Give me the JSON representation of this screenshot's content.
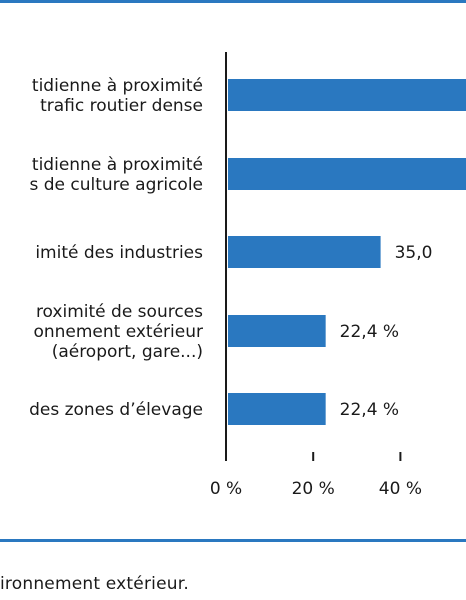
{
  "chart_data": {
    "type": "bar",
    "orientation": "horizontal",
    "categories": [
      [
        "tidienne à proximité",
        "trafic routier dense"
      ],
      [
        "tidienne à proximité",
        "s de culture agricole"
      ],
      [
        "imité des industries"
      ],
      [
        "roximité de sources",
        "onnement extérieur",
        "(aéroport, gare...)"
      ],
      [
        "des zones d’élevage"
      ]
    ],
    "values": [
      62,
      62,
      35.0,
      22.4,
      22.4
    ],
    "value_labels": [
      "",
      "",
      "35,0",
      "22,4 %",
      "22,4 %"
    ],
    "xticks": [
      "0 %",
      "20 %",
      "40 %"
    ],
    "xtick_values": [
      0,
      20,
      40
    ],
    "bar_color": "#2a78c0",
    "title": "",
    "xlabel": "",
    "ylabel": ""
  },
  "footnote": "ironnement extérieur."
}
